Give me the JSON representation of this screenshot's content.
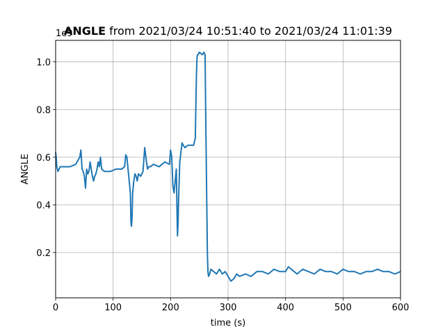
{
  "chart_data": {
    "type": "line",
    "title_bold": "ANGLE",
    "title_rest": " from 2021/03/24 10:51:40 to 2021/03/24 11:01:39",
    "xlabel": "time (s)",
    "ylabel": "ANGLE",
    "y_offset_label": "1e9",
    "xlim": [
      0,
      600
    ],
    "ylim": [
      0.01,
      1.09
    ],
    "x_ticks": [
      0,
      100,
      200,
      300,
      400,
      500,
      600
    ],
    "y_ticks": [
      0.2,
      0.4,
      0.6,
      0.8,
      1.0
    ],
    "x_tick_labels": [
      "0",
      "100",
      "200",
      "300",
      "400",
      "500",
      "600"
    ],
    "y_tick_labels": [
      "0.2",
      "0.4",
      "0.6",
      "0.8",
      "1.0"
    ],
    "grid": true,
    "series": [
      {
        "color": "#1f77b4",
        "x": [
          0,
          1,
          2,
          4,
          8,
          15,
          25,
          35,
          42,
          44,
          46,
          48,
          50,
          52,
          54,
          56,
          58,
          60,
          62,
          64,
          66,
          68,
          70,
          72,
          74,
          76,
          78,
          80,
          85,
          95,
          105,
          115,
          120,
          122,
          124,
          126,
          128,
          130,
          131,
          132,
          133,
          134,
          136,
          138,
          140,
          142,
          144,
          148,
          152,
          155,
          158,
          160,
          162,
          165,
          170,
          180,
          190,
          198,
          200,
          202,
          204,
          206,
          208,
          210,
          211,
          212,
          213,
          214,
          216,
          218,
          220,
          222,
          225,
          230,
          235,
          240,
          243,
          245,
          246,
          247,
          248,
          250,
          255,
          258,
          260,
          261,
          262,
          263,
          264,
          265,
          266,
          268,
          270,
          275,
          280,
          285,
          290,
          295,
          300,
          305,
          310,
          315,
          320,
          330,
          340,
          350,
          360,
          370,
          380,
          390,
          400,
          405,
          410,
          415,
          420,
          430,
          440,
          450,
          460,
          470,
          480,
          490,
          500,
          510,
          520,
          530,
          540,
          550,
          560,
          570,
          580,
          590,
          600
        ],
        "y": [
          0.62,
          0.6,
          0.56,
          0.54,
          0.56,
          0.56,
          0.56,
          0.57,
          0.6,
          0.63,
          0.55,
          0.54,
          0.52,
          0.47,
          0.55,
          0.53,
          0.54,
          0.58,
          0.55,
          0.52,
          0.5,
          0.52,
          0.53,
          0.55,
          0.58,
          0.56,
          0.6,
          0.55,
          0.54,
          0.54,
          0.55,
          0.55,
          0.56,
          0.61,
          0.6,
          0.55,
          0.5,
          0.45,
          0.33,
          0.31,
          0.35,
          0.45,
          0.5,
          0.53,
          0.52,
          0.5,
          0.53,
          0.52,
          0.54,
          0.64,
          0.58,
          0.55,
          0.56,
          0.56,
          0.57,
          0.56,
          0.58,
          0.57,
          0.63,
          0.6,
          0.48,
          0.45,
          0.5,
          0.55,
          0.4,
          0.27,
          0.32,
          0.43,
          0.58,
          0.62,
          0.66,
          0.65,
          0.64,
          0.65,
          0.65,
          0.65,
          0.68,
          0.95,
          1.02,
          1.03,
          1.03,
          1.04,
          1.03,
          1.04,
          1.03,
          0.8,
          0.6,
          0.4,
          0.2,
          0.12,
          0.1,
          0.11,
          0.13,
          0.12,
          0.11,
          0.13,
          0.11,
          0.12,
          0.1,
          0.08,
          0.09,
          0.11,
          0.1,
          0.11,
          0.1,
          0.12,
          0.12,
          0.11,
          0.13,
          0.12,
          0.12,
          0.14,
          0.13,
          0.12,
          0.11,
          0.13,
          0.12,
          0.11,
          0.13,
          0.12,
          0.12,
          0.11,
          0.13,
          0.12,
          0.12,
          0.11,
          0.12,
          0.12,
          0.13,
          0.12,
          0.12,
          0.11,
          0.12
        ]
      }
    ]
  }
}
